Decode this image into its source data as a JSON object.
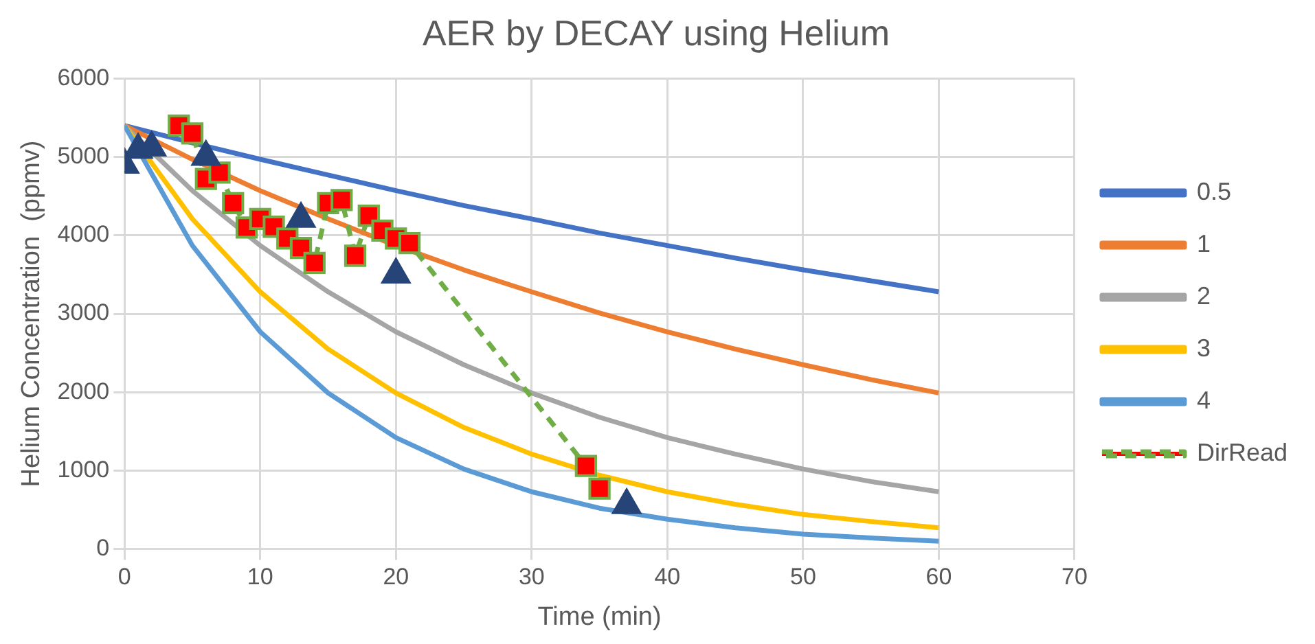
{
  "chart_data": {
    "type": "line",
    "title": "AER by DECAY using Helium",
    "xlabel": "Time (min)",
    "ylabel": "Helium Concentration  (ppmv)",
    "x": [
      0,
      5,
      10,
      15,
      20,
      25,
      30,
      35,
      40,
      45,
      50,
      55,
      60
    ],
    "series": [
      {
        "name": "0.5",
        "color": "#4472c4",
        "values": [
          5400,
          5180,
          4970,
          4770,
          4570,
          4380,
          4210,
          4030,
          3870,
          3710,
          3560,
          3420,
          3280
        ]
      },
      {
        "name": "1",
        "color": "#ed7d31",
        "values": [
          5400,
          4970,
          4570,
          4210,
          3870,
          3560,
          3280,
          3010,
          2770,
          2550,
          2350,
          2160,
          1990
        ]
      },
      {
        "name": "2",
        "color": "#a5a5a5",
        "values": [
          5400,
          4570,
          3870,
          3280,
          2770,
          2350,
          1990,
          1680,
          1420,
          1210,
          1020,
          860,
          730
        ]
      },
      {
        "name": "3",
        "color": "#ffc000",
        "values": [
          5400,
          4210,
          3280,
          2550,
          1990,
          1550,
          1210,
          940,
          730,
          570,
          440,
          350,
          270
        ]
      },
      {
        "name": "4",
        "color": "#5b9bd5",
        "values": [
          5400,
          3870,
          2770,
          1990,
          1420,
          1020,
          730,
          520,
          380,
          270,
          190,
          140,
          100
        ]
      },
      {
        "name": "DirRead",
        "type": "line",
        "line_style": "dashed",
        "marker": "square",
        "color": "#70ad47",
        "colors": [
          "#ff0000",
          "#ff0000",
          "#ff0000",
          "#ff0000",
          "#ff0000",
          "#ff0000",
          "#ff0000",
          "#ff0000",
          "#ff0000",
          "#ff0000",
          "#ff0000",
          "#ff0000",
          "#ff0000",
          "#ff0000",
          "#ff0000",
          "#ff0000",
          "#ff0000",
          "#ff0000",
          "#ff0000",
          "#ff0000"
        ],
        "x": [
          4,
          5,
          6,
          7,
          8,
          9,
          10,
          11,
          12,
          13,
          14,
          15,
          16,
          17,
          18,
          19,
          20,
          21,
          34,
          35
        ],
        "values": [
          5400,
          5300,
          4720,
          4800,
          4410,
          4100,
          4210,
          4110,
          3960,
          3840,
          3650,
          4410,
          4450,
          3740,
          4250,
          4060,
          3960,
          3900,
          1060,
          770
        ]
      },
      {
        "type": "scatter",
        "marker": "triangle",
        "color": "#264478",
        "x": [
          0,
          1,
          2,
          6,
          13,
          20,
          37
        ],
        "values": [
          4900,
          5090,
          5120,
          5000,
          4210,
          3500,
          560
        ]
      }
    ],
    "xlim": [
      0,
      70
    ],
    "xticks": [
      0,
      10,
      20,
      30,
      40,
      50,
      60,
      70
    ],
    "ylim": [
      0,
      6000
    ],
    "yticks": [
      0,
      1000,
      2000,
      3000,
      4000,
      5000,
      6000
    ],
    "grid": true,
    "legend": "right",
    "marker": "none",
    "line_style": "solid"
  }
}
